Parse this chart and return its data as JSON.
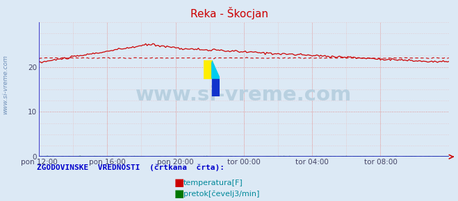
{
  "title": "Reka - Škocjan",
  "background_color": "#dce9f5",
  "plot_bg_color": "#dce9f5",
  "x_labels": [
    "pon 12:00",
    "pon 16:00",
    "pon 20:00",
    "tor 00:00",
    "tor 04:00",
    "tor 08:00"
  ],
  "x_ticks_pos": [
    0.0,
    0.1667,
    0.3333,
    0.5,
    0.6667,
    0.8333
  ],
  "ylim": [
    0,
    30
  ],
  "yticks": [
    0,
    10,
    20
  ],
  "grid_color_major": "#e09090",
  "grid_color_minor": "#e8b8b8",
  "temp_color": "#cc0000",
  "flow_color": "#007700",
  "watermark_text": "www.si-vreme.com",
  "watermark_color": "#b8d0e0",
  "legend_label": "ZGODOVINSKE  VREDNOSTI  (črtkana  črta):",
  "legend_color": "#0000cc",
  "legend_temp": "temperatura[F]",
  "legend_flow": "pretok[čevelj3/min]",
  "ylabel_text": "www.si-vreme.com",
  "ylabel_color": "#7090b8",
  "left_spine_color": "#2222cc",
  "bottom_spine_color": "#2222cc",
  "arrow_color": "#cc0000",
  "title_color": "#cc0000"
}
